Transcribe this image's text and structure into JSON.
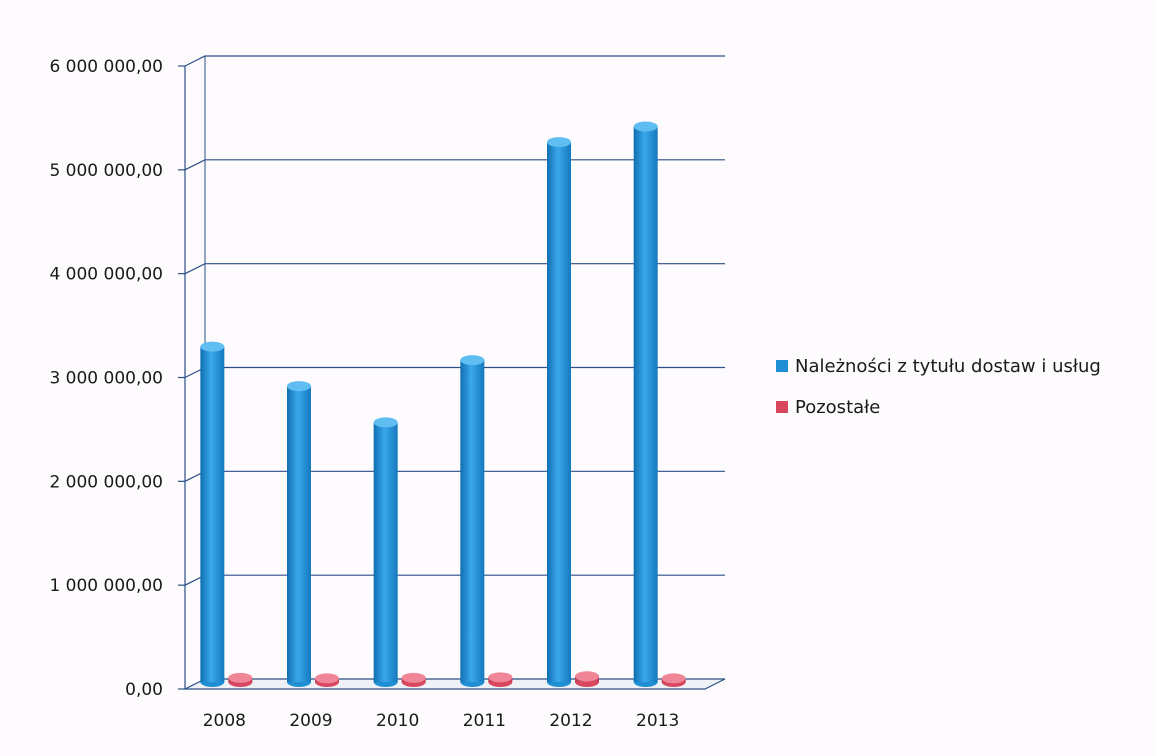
{
  "chart_data": {
    "type": "bar",
    "categories": [
      "2008",
      "2009",
      "2010",
      "2011",
      "2012",
      "2013"
    ],
    "series": [
      {
        "name": "Należności z tytułu dostaw i usług",
        "color": "#1f8fd3",
        "values": [
          3230000,
          2850000,
          2500000,
          3100000,
          5200000,
          5350000
        ]
      },
      {
        "name": "Pozostałe",
        "color": "#d9475f",
        "values": [
          40000,
          35000,
          40000,
          45000,
          55000,
          35000
        ]
      }
    ],
    "y_tick_labels": [
      "0,00",
      "1 000 000,00",
      "2 000 000,00",
      "3 000 000,00",
      "4 000 000,00",
      "5 000 000,00",
      "6 000 000,00"
    ],
    "ylim": [
      0,
      6000000
    ],
    "grid": true,
    "legend_position": "right",
    "colors": {
      "gridline": "#2b4f86",
      "floor": "#2b4f86"
    }
  }
}
